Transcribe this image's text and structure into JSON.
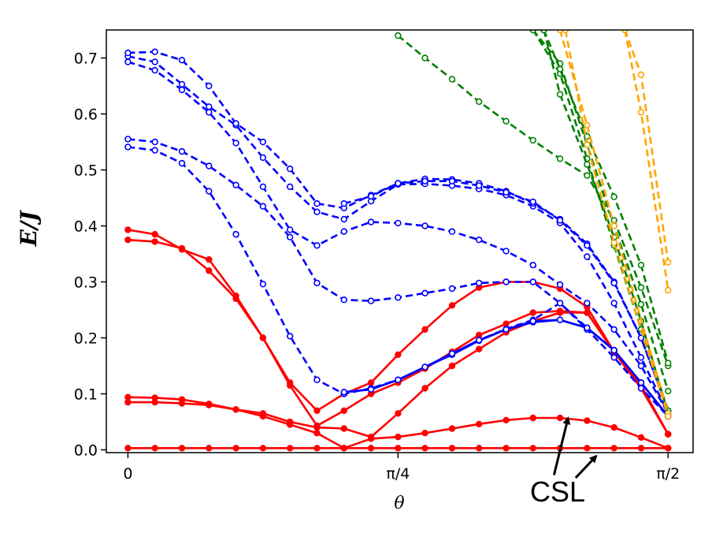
{
  "chart_data": {
    "type": "line",
    "title": "",
    "xlabel": "θ",
    "ylabel": "E/J",
    "xlim": [
      -0.0628,
      1.6434
    ],
    "ylim": [
      -0.005,
      0.75
    ],
    "x_ticks": [
      {
        "value": 0,
        "label": "0"
      },
      {
        "value": 0.7854,
        "label": "π/4"
      },
      {
        "value": 1.5708,
        "label": "π/2"
      }
    ],
    "y_ticks": [
      {
        "value": 0.0,
        "label": "0.0"
      },
      {
        "value": 0.1,
        "label": "0.1"
      },
      {
        "value": 0.2,
        "label": "0.2"
      },
      {
        "value": 0.3,
        "label": "0.3"
      },
      {
        "value": 0.4,
        "label": "0.4"
      },
      {
        "value": 0.5,
        "label": "0.5"
      },
      {
        "value": 0.6,
        "label": "0.6"
      },
      {
        "value": 0.7,
        "label": "0.7"
      }
    ],
    "annotation": {
      "text": "CSL",
      "arrows": [
        {
          "from": [
            1.239,
            -0.045
          ],
          "to": [
            1.28,
            0.057
          ]
        },
        {
          "from": [
            1.302,
            -0.05
          ],
          "to": [
            1.362,
            -0.011
          ]
        }
      ]
    },
    "series": [
      {
        "name": "red-1",
        "color": "#ff0000",
        "dashed": false,
        "marker": "filled",
        "x": [
          0,
          0.0785,
          0.1571,
          0.2356,
          0.3142,
          0.3927,
          0.4712,
          0.5498,
          0.6283,
          0.7069,
          0.7854,
          0.8639,
          0.9425,
          1.021,
          1.0996,
          1.1781,
          1.2566,
          1.3352,
          1.4137,
          1.4923,
          1.5708
        ],
        "y": [
          0.003,
          0.003,
          0.003,
          0.003,
          0.003,
          0.003,
          0.003,
          0.003,
          0.003,
          0.003,
          0.003,
          0.003,
          0.003,
          0.003,
          0.003,
          0.003,
          0.003,
          0.003,
          0.003,
          0.003,
          0.003
        ]
      },
      {
        "name": "red-2",
        "color": "#ff0000",
        "dashed": false,
        "marker": "filled",
        "x": [
          0,
          0.0785,
          0.1571,
          0.2356,
          0.3142,
          0.3927,
          0.4712,
          0.5498,
          0.6283,
          0.7069,
          0.7854,
          0.8639,
          0.9425,
          1.021,
          1.0996,
          1.1781,
          1.2566,
          1.3352,
          1.4137,
          1.4923,
          1.5708
        ],
        "y": [
          0.085,
          0.085,
          0.083,
          0.08,
          0.072,
          0.06,
          0.045,
          0.03,
          0.003,
          0.02,
          0.023,
          0.03,
          0.038,
          0.046,
          0.053,
          0.057,
          0.057,
          0.052,
          0.04,
          0.022,
          0.003
        ]
      },
      {
        "name": "red-3",
        "color": "#ff0000",
        "dashed": false,
        "marker": "filled",
        "x": [
          0,
          0.0785,
          0.1571,
          0.2356,
          0.3142,
          0.3927,
          0.4712,
          0.5498,
          0.6283,
          0.7069,
          0.7854,
          0.8639,
          0.9425,
          1.021,
          1.0996,
          1.1781,
          1.2566,
          1.3352,
          1.4137,
          1.4923,
          1.5708
        ],
        "y": [
          0.094,
          0.093,
          0.09,
          0.082,
          0.072,
          0.065,
          0.05,
          0.04,
          0.038,
          0.023,
          0.065,
          0.11,
          0.15,
          0.18,
          0.21,
          0.23,
          0.245,
          0.245,
          0.175,
          0.115,
          0.028
        ]
      },
      {
        "name": "red-4",
        "color": "#ff0000",
        "dashed": false,
        "marker": "filled",
        "x": [
          0,
          0.0785,
          0.1571,
          0.2356,
          0.3142,
          0.3927,
          0.4712,
          0.5498,
          0.6283,
          0.7069,
          0.7854,
          0.8639,
          0.9425,
          1.021,
          1.0996,
          1.1781,
          1.2566,
          1.3352,
          1.4137,
          1.4923,
          1.5708
        ],
        "y": [
          0.375,
          0.372,
          0.36,
          0.32,
          0.27,
          0.2,
          0.115,
          0.043,
          0.07,
          0.1,
          0.12,
          0.145,
          0.175,
          0.205,
          0.225,
          0.245,
          0.248,
          0.245,
          0.175,
          0.11,
          0.028
        ]
      },
      {
        "name": "red-5",
        "color": "#ff0000",
        "dashed": false,
        "marker": "filled",
        "x": [
          0,
          0.0785,
          0.1571,
          0.2356,
          0.3142,
          0.3927,
          0.4712,
          0.5498,
          0.6283,
          0.7069,
          0.7854,
          0.8639,
          0.9425,
          1.021,
          1.0996,
          1.1781,
          1.2566,
          1.3352,
          1.4137,
          1.4923,
          1.5708
        ],
        "y": [
          0.393,
          0.385,
          0.358,
          0.34,
          0.275,
          0.2,
          0.12,
          0.07,
          0.1,
          0.12,
          0.17,
          0.215,
          0.258,
          0.29,
          0.3,
          0.3,
          0.288,
          0.255,
          0.175,
          0.11,
          0.028
        ]
      },
      {
        "name": "blue-1",
        "color": "#0000ff",
        "dashed": false,
        "marker": "open",
        "x": [
          0.6283,
          0.7069,
          0.7854,
          0.8639,
          0.9425,
          1.021,
          1.0996,
          1.1781,
          1.2566,
          1.3352,
          1.4137,
          1.4923,
          1.5708
        ],
        "y": [
          0.103,
          0.108,
          0.125,
          0.148,
          0.17,
          0.195,
          0.215,
          0.228,
          0.232,
          0.218,
          0.178,
          0.12,
          0.06
        ]
      },
      {
        "name": "blue-2",
        "color": "#0000ff",
        "dashed": false,
        "marker": "open",
        "x": [
          0.6283,
          0.7069,
          0.7854,
          0.8639,
          0.9425,
          1.021,
          1.0996,
          1.1781,
          1.2566,
          1.3352,
          1.4137,
          1.4923,
          1.5708
        ],
        "y": [
          0.103,
          0.108,
          0.125,
          0.148,
          0.172,
          0.196,
          0.215,
          0.23,
          0.232,
          0.218,
          0.178,
          0.12,
          0.06
        ]
      },
      {
        "name": "blue-dash-1",
        "color": "#0000ff",
        "dashed": true,
        "marker": "open",
        "x": [
          0,
          0.0785,
          0.1571,
          0.2356,
          0.3142,
          0.3927,
          0.4712,
          0.5498,
          0.6283,
          0.7069,
          0.7854,
          0.8639,
          0.9425,
          1.021,
          1.0996,
          1.1781,
          1.2566,
          1.3352,
          1.4137,
          1.4923,
          1.5708
        ],
        "y": [
          0.541,
          0.535,
          0.512,
          0.462,
          0.385,
          0.296,
          0.203,
          0.125,
          0.1,
          0.11,
          0.125,
          0.148,
          0.172,
          0.196,
          0.216,
          0.232,
          0.262,
          0.218,
          0.178,
          0.12,
          0.06
        ]
      },
      {
        "name": "blue-dash-2",
        "color": "#0000ff",
        "dashed": true,
        "marker": "open",
        "x": [
          0,
          0.0785,
          0.1571,
          0.2356,
          0.3142,
          0.3927,
          0.4712,
          0.5498,
          0.6283,
          0.7069,
          0.7854,
          0.8639,
          0.9425,
          1.021,
          1.0996,
          1.1781,
          1.2566,
          1.3352,
          1.4137,
          1.4923,
          1.5708
        ],
        "y": [
          0.555,
          0.55,
          0.533,
          0.507,
          0.473,
          0.435,
          0.38,
          0.298,
          0.268,
          0.266,
          0.272,
          0.28,
          0.288,
          0.298,
          0.3,
          0.3,
          0.262,
          0.215,
          0.165,
          0.11,
          0.06
        ]
      },
      {
        "name": "blue-dash-3",
        "color": "#0000ff",
        "dashed": true,
        "marker": "open",
        "x": [
          0,
          0.0785,
          0.1571,
          0.2356,
          0.3142,
          0.3927,
          0.4712,
          0.5498,
          0.6283,
          0.7069,
          0.7854,
          0.8639,
          0.9425,
          1.021,
          1.0996,
          1.1781,
          1.2566,
          1.3352,
          1.4137,
          1.4923,
          1.5708
        ],
        "y": [
          0.693,
          0.678,
          0.643,
          0.603,
          0.548,
          0.47,
          0.393,
          0.365,
          0.39,
          0.407,
          0.405,
          0.4,
          0.39,
          0.375,
          0.355,
          0.33,
          0.295,
          0.262,
          0.215,
          0.15,
          0.065
        ]
      },
      {
        "name": "blue-dash-4",
        "color": "#0000ff",
        "dashed": true,
        "marker": "open",
        "x": [
          0,
          0.0785,
          0.1571,
          0.2356,
          0.3142,
          0.3927,
          0.4712,
          0.5498,
          0.6283,
          0.7069,
          0.7854,
          0.8639,
          0.9425,
          1.021,
          1.0996,
          1.1781,
          1.2566,
          1.3352,
          1.4137,
          1.4923,
          1.5708
        ],
        "y": [
          0.703,
          0.693,
          0.653,
          0.613,
          0.58,
          0.522,
          0.47,
          0.425,
          0.412,
          0.444,
          0.474,
          0.475,
          0.472,
          0.466,
          0.455,
          0.435,
          0.405,
          0.345,
          0.262,
          0.165,
          0.065
        ]
      },
      {
        "name": "blue-dash-5",
        "color": "#0000ff",
        "dashed": true,
        "marker": "open",
        "x": [
          0,
          0.0785,
          0.1571,
          0.2356,
          0.3142,
          0.3927,
          0.4712,
          0.5498,
          0.6283,
          0.7069,
          0.7854,
          0.8639,
          0.9425,
          1.021,
          1.0996,
          1.1781,
          1.2566,
          1.3352,
          1.4137,
          1.4923,
          1.5708
        ],
        "y": [
          0.709,
          0.711,
          0.696,
          0.65,
          0.583,
          0.55,
          0.502,
          0.44,
          0.432,
          0.455,
          0.476,
          0.484,
          0.483,
          0.476,
          0.462,
          0.44,
          0.412,
          0.368,
          0.3,
          0.2,
          0.07
        ]
      },
      {
        "name": "blue-dash-6",
        "color": "#0000ff",
        "dashed": true,
        "marker": "open",
        "x": [
          0.6283,
          0.7069,
          0.7854,
          0.8639,
          0.9425,
          1.021,
          1.0996,
          1.1781,
          1.2566,
          1.3352,
          1.4137,
          1.4923,
          1.5708
        ],
        "y": [
          0.44,
          0.453,
          0.476,
          0.48,
          0.48,
          0.472,
          0.46,
          0.443,
          0.41,
          0.365,
          0.298,
          0.2,
          0.07
        ]
      },
      {
        "name": "green-1",
        "color": "#008000",
        "dashed": true,
        "marker": "open",
        "x": [
          0.7854,
          0.8639,
          0.9425,
          1.021,
          1.0996,
          1.1781,
          1.2566,
          1.3352,
          1.4137,
          1.4923,
          1.5708
        ],
        "y": [
          0.74,
          0.7,
          0.662,
          0.622,
          0.587,
          0.553,
          0.52,
          0.49,
          0.41,
          0.29,
          0.15
        ]
      },
      {
        "name": "green-2",
        "color": "#008000",
        "dashed": true,
        "marker": "open",
        "x": [
          1.1781,
          1.2566,
          1.3352,
          1.4137,
          1.4923,
          1.5708
        ],
        "y": [
          0.75,
          0.69,
          0.545,
          0.4,
          0.26,
          0.105
        ]
      },
      {
        "name": "green-3",
        "color": "#008000",
        "dashed": true,
        "marker": "open",
        "x": [
          1.1781,
          1.2566,
          1.3352,
          1.4137,
          1.4923,
          1.5708
        ],
        "y": [
          0.75,
          0.672,
          0.52,
          0.365,
          0.215,
          0.07
        ]
      },
      {
        "name": "green-4",
        "color": "#008000",
        "dashed": true,
        "marker": "open",
        "x": [
          1.2095,
          1.2566,
          1.3352,
          1.4137,
          1.4923,
          1.5708
        ],
        "y": [
          0.75,
          0.68,
          0.56,
          0.452,
          0.33,
          0.155
        ]
      },
      {
        "name": "green-5",
        "color": "#008000",
        "dashed": true,
        "marker": "open",
        "x": [
          1.2095,
          1.2566,
          1.3352,
          1.4137,
          1.4923,
          1.5708
        ],
        "y": [
          0.75,
          0.635,
          0.51,
          0.38,
          0.23,
          0.065
        ]
      },
      {
        "name": "orange-1",
        "color": "#ffa500",
        "dashed": true,
        "marker": "open",
        "x": [
          1.2566,
          1.3352,
          1.4137,
          1.5708
        ],
        "y": [
          0.75,
          0.58,
          0.4,
          0.065
        ]
      },
      {
        "name": "orange-2",
        "color": "#ffa500",
        "dashed": true,
        "marker": "open",
        "x": [
          1.2723,
          1.3352,
          1.4137,
          1.5708
        ],
        "y": [
          0.75,
          0.545,
          0.37,
          0.06
        ]
      },
      {
        "name": "orange-3",
        "color": "#ffa500",
        "dashed": true,
        "marker": "open",
        "x": [
          1.4451,
          1.4923,
          1.5708
        ],
        "y": [
          0.75,
          0.67,
          0.335
        ]
      },
      {
        "name": "orange-4",
        "color": "#ffa500",
        "dashed": true,
        "marker": "open",
        "x": [
          1.4451,
          1.4923,
          1.5708
        ],
        "y": [
          0.75,
          0.603,
          0.285
        ]
      }
    ]
  }
}
